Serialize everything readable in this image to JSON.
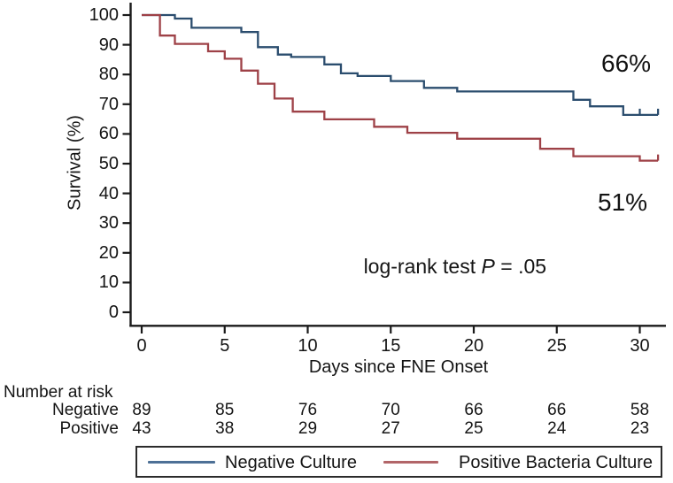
{
  "figure": {
    "pct_label_blue": "66%",
    "pct_label_red": "51%",
    "annotation_parts": {
      "prefix": "log-rank test ",
      "p": "P",
      "rest": " = .05"
    }
  },
  "chart_data": {
    "type": "line",
    "subtype": "kaplan-meier-step-survival",
    "title": "",
    "xlabel": "Days since FNE Onset",
    "ylabel": "Survival (%)",
    "xlim": [
      0,
      31.5
    ],
    "ylim": [
      0,
      100
    ],
    "xticks": [
      0,
      5,
      10,
      15,
      20,
      25,
      30
    ],
    "yticks": [
      100,
      90,
      80,
      70,
      60,
      50,
      40,
      30,
      20,
      10,
      0
    ],
    "grid": false,
    "legend_position": "bottom-box",
    "annotation": "log-rank test P = .05",
    "series": [
      {
        "name": "Negative Culture",
        "color": "#2b4d6e",
        "legend_color": "#4d7096",
        "end_label": "66%",
        "steps": [
          [
            0,
            100
          ],
          [
            2,
            98.8
          ],
          [
            3,
            95.7
          ],
          [
            6,
            94.3
          ],
          [
            7,
            89.2
          ],
          [
            8.2,
            86.7
          ],
          [
            9,
            85.9
          ],
          [
            11,
            83.4
          ],
          [
            12,
            80.4
          ],
          [
            13,
            79.5
          ],
          [
            15,
            77.8
          ],
          [
            17,
            75.5
          ],
          [
            19,
            74.3
          ],
          [
            26,
            71.5
          ],
          [
            27,
            69.3
          ],
          [
            29,
            66.4
          ]
        ],
        "end_time": 31.1,
        "censor_times": [
          30,
          31.1
        ]
      },
      {
        "name": "Positive Bacteria Culture",
        "color": "#9e4147",
        "legend_color": "#b26568",
        "end_label": "51%",
        "steps": [
          [
            0,
            100
          ],
          [
            1.1,
            93.1
          ],
          [
            2,
            90.3
          ],
          [
            4,
            87.8
          ],
          [
            5,
            85.3
          ],
          [
            6,
            81.3
          ],
          [
            7,
            76.9
          ],
          [
            8,
            71.9
          ],
          [
            9.1,
            67.5
          ],
          [
            11,
            64.9
          ],
          [
            14,
            62.4
          ],
          [
            16,
            60.4
          ],
          [
            19,
            58.4
          ],
          [
            24,
            55.0
          ],
          [
            26,
            52.5
          ],
          [
            30,
            51.0
          ]
        ],
        "end_time": 31.1,
        "censor_times": [
          31.1
        ]
      }
    ],
    "risk_table": {
      "title": "Number at risk",
      "times": [
        0,
        5,
        10,
        15,
        20,
        25,
        30
      ],
      "rows": [
        {
          "label": "Negative",
          "counts": [
            89,
            85,
            76,
            70,
            66,
            66,
            58
          ]
        },
        {
          "label": "Positive",
          "counts": [
            43,
            38,
            29,
            27,
            25,
            24,
            23
          ]
        }
      ]
    }
  }
}
